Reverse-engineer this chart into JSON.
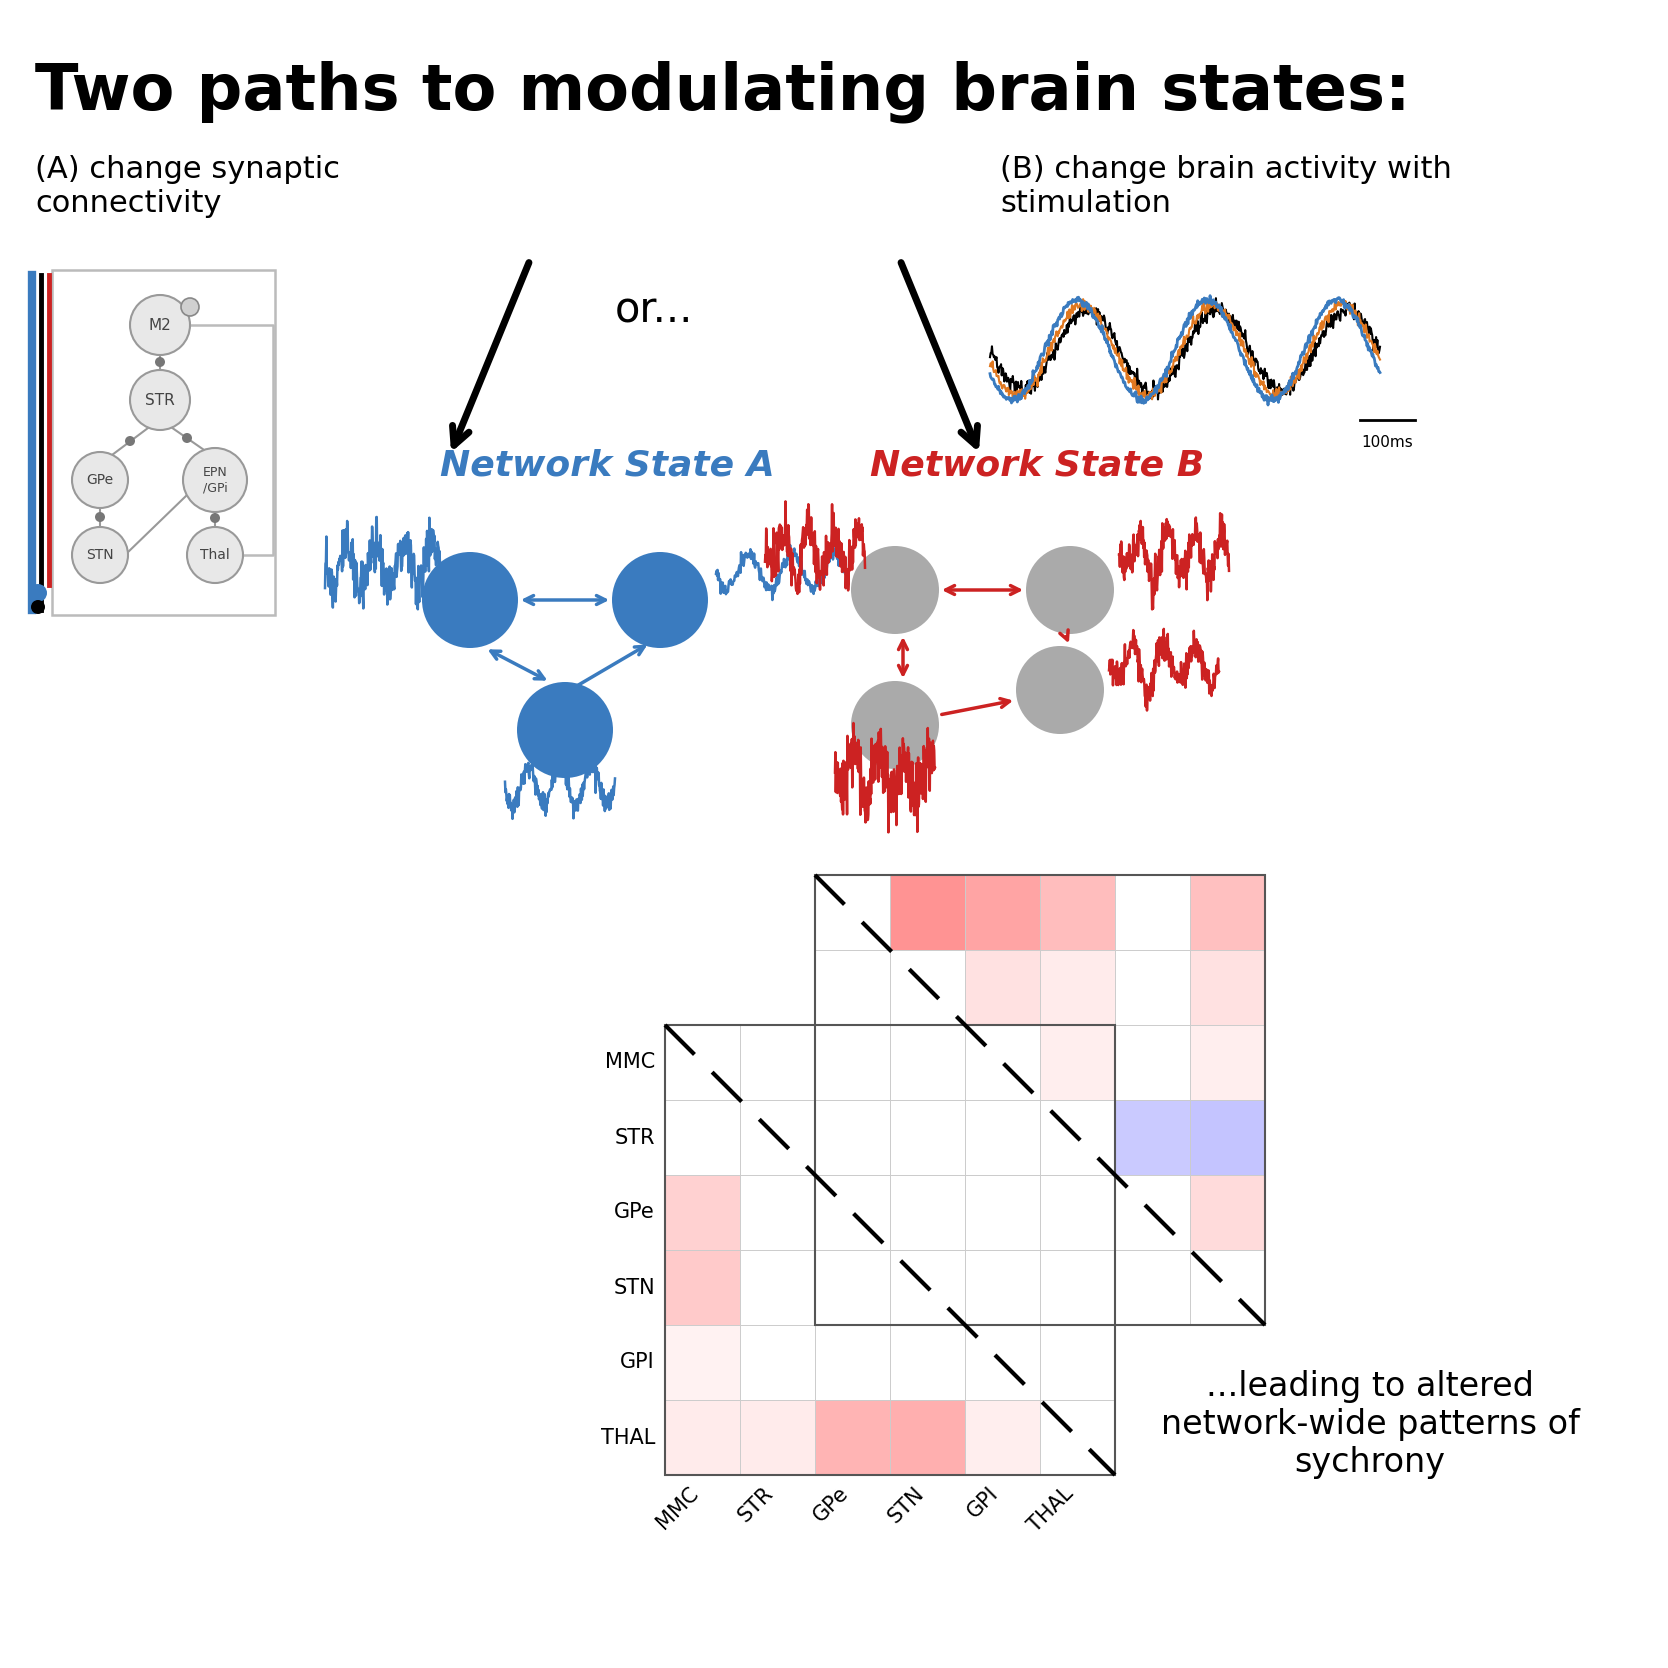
{
  "title": "Two paths to modulating brain states:",
  "subtitle_A": "(A) change synaptic\nconnectivity",
  "subtitle_B": "(B) change brain activity with\nstimulation",
  "or_text": "or...",
  "network_A_label": "Network State A",
  "network_B_label": "Network State B",
  "leading_text": "...leading to altered\nnetwork-wide patterns of\nsychrony",
  "nodes_A_color": "#3a7bbf",
  "nodes_B_color": "#aaaaaa",
  "arrows_A_color": "#3a7bbf",
  "arrows_B_color": "#cc2222",
  "bg_color": "#ffffff",
  "heatmap_labels": [
    "MMC",
    "STR",
    "GPe",
    "STN",
    "GPI",
    "THAL"
  ],
  "heatmap_A_data": [
    [
      0,
      0,
      0,
      0,
      0,
      0
    ],
    [
      0,
      0,
      0,
      0,
      0,
      0
    ],
    [
      0.28,
      0,
      0,
      0,
      0,
      0
    ],
    [
      0.32,
      0,
      0,
      0,
      0,
      0
    ],
    [
      0.08,
      0,
      0,
      0,
      0,
      0
    ],
    [
      0.12,
      0.12,
      0.45,
      0.48,
      0.1,
      0
    ]
  ],
  "heatmap_B_data": [
    [
      0,
      0.65,
      0.55,
      0.4,
      0,
      0.38
    ],
    [
      0,
      0,
      0.18,
      0.12,
      0,
      0.18
    ],
    [
      0,
      0,
      0,
      0.1,
      0,
      0.1
    ],
    [
      0,
      0,
      0,
      0,
      -0.38,
      -0.42
    ],
    [
      0,
      0,
      0,
      0,
      0,
      0.22
    ],
    [
      0,
      0,
      0,
      0,
      0,
      0
    ]
  ]
}
